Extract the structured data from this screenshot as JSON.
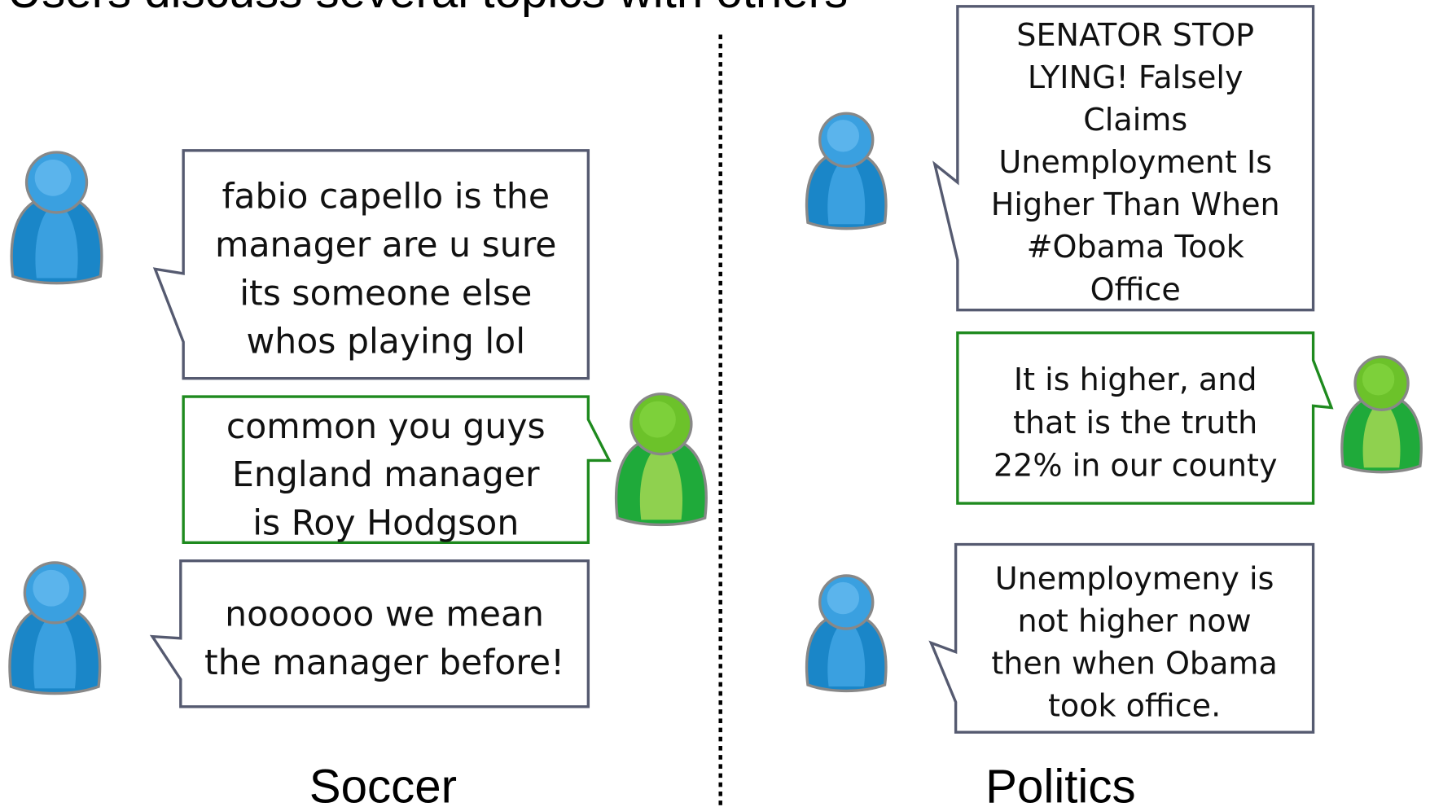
{
  "title": "Users discuss several topics with others",
  "panels": [
    {
      "label": "Soccer",
      "messages": [
        {
          "lines": [
            "fabio capello is the",
            "manager are u sure",
            "its someone else",
            "whos playing lol"
          ]
        },
        {
          "lines": [
            "common you guys",
            "England manager",
            "is Roy Hodgson"
          ]
        },
        {
          "lines": [
            "noooooo we mean",
            "the manager before!"
          ]
        }
      ]
    },
    {
      "label": "Politics",
      "messages": [
        {
          "lines": [
            "SENATOR STOP",
            "LYING! Falsely",
            "Claims",
            "Unemployment Is",
            "Higher Than When",
            "#Obama Took",
            "Office"
          ]
        },
        {
          "lines": [
            "It is higher, and",
            "that is the truth",
            "22% in our county"
          ]
        },
        {
          "lines": [
            "Unemploymeny is",
            "not higher now",
            "then when Obama",
            "took office."
          ]
        }
      ]
    }
  ]
}
